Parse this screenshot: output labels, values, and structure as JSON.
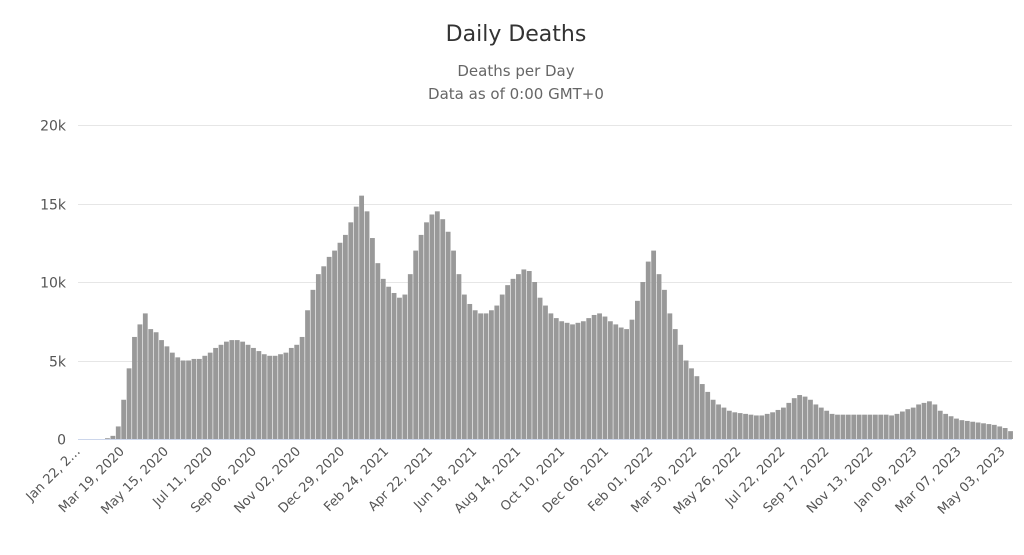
{
  "chart_data": {
    "type": "bar",
    "title": "Daily Deaths",
    "subtitle": "Deaths per Day",
    "subtitle2": "Data as of 0:00 GMT+0",
    "xlabel": "",
    "ylabel": "",
    "ylim": [
      0,
      20000
    ],
    "yticks": [
      0,
      5000,
      10000,
      15000,
      20000
    ],
    "ytick_labels": [
      "0",
      "5k",
      "10k",
      "15k",
      "20k"
    ],
    "xtick_labels": [
      "Jan 22, 2…",
      "Mar 19, 2020",
      "May 15, 2020",
      "Jul 11, 2020",
      "Sep 06, 2020",
      "Nov 02, 2020",
      "Dec 29, 2020",
      "Feb 24, 2021",
      "Apr 22, 2021",
      "Jun 18, 2021",
      "Aug 14, 2021",
      "Oct 10, 2021",
      "Dec 06, 2021",
      "Feb 01, 2022",
      "Mar 30, 2022",
      "May 26, 2022",
      "Jul 22, 2022",
      "Sep 17, 2022",
      "Nov 13, 2022",
      "Jan 09, 2023",
      "Mar 07, 2023",
      "May 03, 2023"
    ],
    "xtick_interval_days": 57,
    "total_days": 1209,
    "bin_days": 7,
    "grid": true,
    "bar_color": "#999999",
    "values": [
      0,
      0,
      0,
      0,
      0,
      50,
      200,
      800,
      2500,
      4500,
      6500,
      7300,
      8000,
      7000,
      6800,
      6300,
      5900,
      5500,
      5200,
      5000,
      5000,
      5100,
      5100,
      5300,
      5500,
      5800,
      6000,
      6200,
      6300,
      6300,
      6200,
      6000,
      5800,
      5600,
      5400,
      5300,
      5300,
      5400,
      5500,
      5800,
      6000,
      6500,
      8200,
      9500,
      10500,
      11000,
      11600,
      12000,
      12500,
      13000,
      13800,
      14800,
      15500,
      14500,
      12800,
      11200,
      10200,
      9700,
      9300,
      9000,
      9200,
      10500,
      12000,
      13000,
      13800,
      14300,
      14500,
      14000,
      13200,
      12000,
      10500,
      9200,
      8600,
      8200,
      8000,
      8000,
      8200,
      8500,
      9200,
      9800,
      10200,
      10500,
      10800,
      10700,
      10000,
      9000,
      8500,
      8000,
      7700,
      7500,
      7400,
      7300,
      7400,
      7500,
      7700,
      7900,
      8000,
      7800,
      7500,
      7300,
      7100,
      7000,
      7600,
      8800,
      10000,
      11300,
      12000,
      10500,
      9500,
      8000,
      7000,
      6000,
      5000,
      4500,
      4000,
      3500,
      3000,
      2500,
      2200,
      2000,
      1800,
      1700,
      1650,
      1600,
      1550,
      1500,
      1500,
      1600,
      1700,
      1850,
      2000,
      2300,
      2600,
      2800,
      2700,
      2500,
      2200,
      2000,
      1800,
      1600,
      1550,
      1550,
      1550,
      1550,
      1550,
      1550,
      1550,
      1550,
      1550,
      1550,
      1500,
      1600,
      1750,
      1900,
      2000,
      2200,
      2300,
      2400,
      2200,
      1800,
      1600,
      1450,
      1300,
      1200,
      1150,
      1100,
      1050,
      1000,
      950,
      900,
      800,
      700,
      500
    ]
  }
}
